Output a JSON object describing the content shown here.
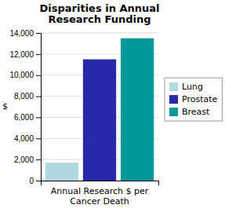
{
  "chart_data": {
    "type": "bar",
    "title": "Disparities in Annual\nResearch Funding",
    "xlabel": "Annual Research $ per\nCancer Death",
    "ylabel": "$",
    "categories": [
      "Lung",
      "Prostate",
      "Breast"
    ],
    "values": [
      1700,
      11500,
      13500
    ],
    "colors": [
      "#B0D8E0",
      "#2828AA",
      "#009999"
    ],
    "ylim": [
      0,
      14000
    ],
    "yticks": [
      0,
      {
        "value": 2000,
        "label": "2,000"
      },
      {
        "value": 4000,
        "label": "4,000"
      },
      {
        "value": 6000,
        "label": "6,000"
      },
      {
        "value": 8000,
        "label": "8,000"
      },
      {
        "value": 10000,
        "label": "10,000"
      },
      {
        "value": 12000,
        "label": "12,000"
      },
      {
        "value": 14000,
        "label": "14,000"
      }
    ],
    "grid": true,
    "legend": "right",
    "tick_labels": "y"
  }
}
